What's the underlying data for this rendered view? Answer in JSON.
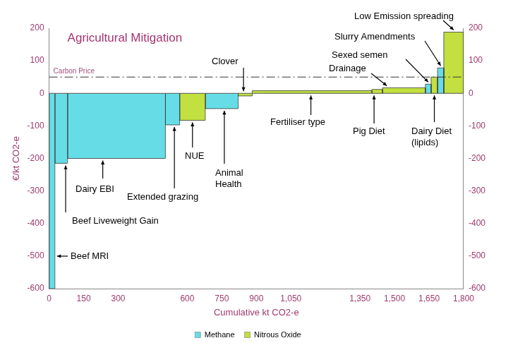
{
  "chart_data": {
    "type": "bar",
    "title": "Agricultural Mitigation",
    "xlabel": "Cumulative kt CO2-e",
    "ylabel": "€/kt CO2-e",
    "categories": [
      "Beef MRI",
      "Beef Liveweight Gain",
      "Dairy EBI",
      "Extended grazing",
      "NUE",
      "Animal Health",
      "Clover",
      "Fertiliser type",
      "Pig Diet",
      "Drainage",
      "Sexed semen",
      "Dairy Diet (lipids)",
      "Slurry Amendments",
      "Low Emission spreading"
    ],
    "widths": [
      25,
      55,
      425,
      62,
      111,
      143,
      61,
      520,
      46,
      186,
      25,
      28,
      27,
      86
    ],
    "values": [
      -600,
      -215,
      -200,
      -97,
      -83,
      -47,
      -8,
      8,
      12,
      17,
      28,
      50,
      78,
      188
    ],
    "gas": [
      "Methane",
      "Methane",
      "Methane",
      "Methane",
      "Nitrous Oxide",
      "Methane",
      "Nitrous Oxide",
      "Nitrous Oxide",
      "Nitrous Oxide",
      "Nitrous Oxide",
      "Methane",
      "Nitrous Oxide",
      "Methane",
      "Nitrous Oxide"
    ],
    "series": [
      {
        "name": "Methane",
        "color": "#66dde6"
      },
      {
        "name": "Nitrous Oxide",
        "color": "#c2e03f"
      }
    ],
    "carbon_price": {
      "label": "Carbon Price",
      "value": 50
    },
    "xlim": [
      0,
      1800
    ],
    "xticks": [
      0,
      150,
      300,
      600,
      750,
      900,
      {
        "value": 1050,
        "label": "1,050"
      },
      {
        "value": 1350,
        "label": "1,350"
      },
      {
        "value": 1500,
        "label": "1,500"
      },
      {
        "value": 1650,
        "label": "1,650"
      },
      {
        "value": 1800,
        "label": "1,800"
      }
    ],
    "ylim": [
      -600,
      200
    ],
    "yticks": [
      -600,
      -500,
      -400,
      -300,
      -200,
      -100,
      0,
      100,
      200
    ],
    "y2lim": [
      -600,
      200
    ],
    "y2ticks": [
      -600,
      -500,
      -400,
      -300,
      -200,
      -100,
      0,
      100,
      200
    ],
    "grid": false,
    "legend": "bottom"
  }
}
